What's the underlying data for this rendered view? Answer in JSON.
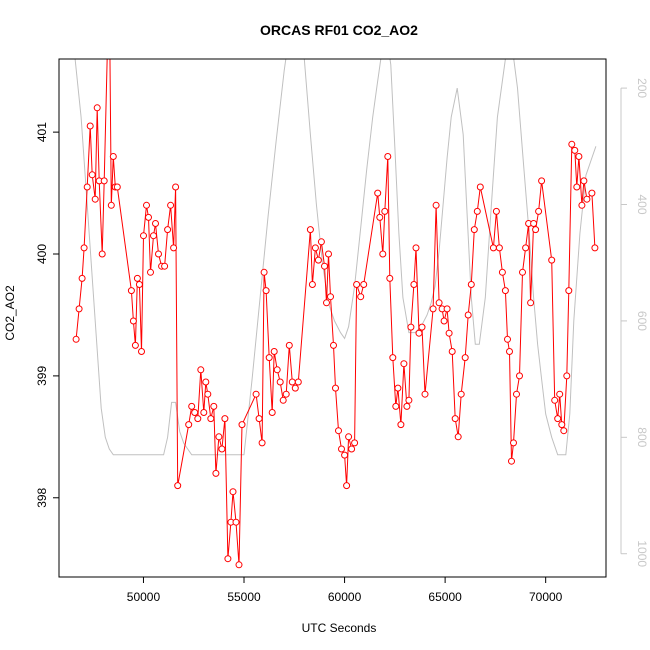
{
  "chart_data": {
    "type": "line",
    "title": "ORCAS RF01 CO2_AO2",
    "xlabel": "UTC Seconds",
    "ylabel": "CO2_AO2",
    "xlim": [
      45800,
      73000
    ],
    "ylim": [
      397.35,
      401.6
    ],
    "x_ticks": [
      50000,
      55000,
      60000,
      65000,
      70000
    ],
    "x_tick_labels": [
      "50000",
      "55000",
      "60000",
      "65000",
      "70000"
    ],
    "y_ticks": [
      398,
      399,
      400,
      401
    ],
    "y_tick_labels": [
      "398",
      "399",
      "400",
      "401"
    ],
    "right_axis": {
      "reversed": true,
      "lim": [
        150,
        1040
      ],
      "ticks": [
        200,
        400,
        600,
        800,
        1000
      ],
      "tick_labels": [
        "200",
        "400",
        "600",
        "800",
        "1000"
      ],
      "color": "#c8c8c8"
    },
    "series": [
      {
        "color": "#ff0000",
        "style": "line+open-circle",
        "x": [
          46650,
          46800,
          46950,
          47050,
          47200,
          47350,
          47450,
          47600,
          47700,
          47800,
          47950,
          48050,
          48200,
          48300,
          48400,
          48500,
          48600,
          48700,
          49400,
          49500,
          49600,
          49700,
          49800,
          49900,
          50000,
          50150,
          50250,
          50350,
          50500,
          50600,
          50750,
          50900,
          51050,
          51200,
          51350,
          51500,
          51600,
          51700,
          52250,
          52400,
          52550,
          52700,
          52850,
          53000,
          53100,
          53200,
          53350,
          53500,
          53600,
          53750,
          53900,
          54050,
          54200,
          54350,
          54450,
          54600,
          54750,
          54900,
          55600,
          55750,
          55900,
          56000,
          56100,
          56250,
          56400,
          56500,
          56650,
          56800,
          56950,
          57100,
          57250,
          57400,
          57550,
          57700,
          58300,
          58400,
          58550,
          58700,
          58850,
          59000,
          59100,
          59200,
          59300,
          59450,
          59550,
          59700,
          59850,
          60000,
          60100,
          60200,
          60350,
          60500,
          60600,
          60800,
          60950,
          61650,
          61750,
          61900,
          62000,
          62150,
          62250,
          62400,
          62550,
          62650,
          62800,
          62950,
          63100,
          63200,
          63300,
          63450,
          63550,
          63700,
          63850,
          64000,
          64400,
          64550,
          64700,
          64850,
          64950,
          65100,
          65200,
          65350,
          65500,
          65650,
          65800,
          66000,
          66150,
          66300,
          66450,
          66600,
          66750,
          67400,
          67550,
          67700,
          67850,
          68000,
          68100,
          68200,
          68300,
          68400,
          68550,
          68700,
          68850,
          69000,
          69150,
          69250,
          69400,
          69500,
          69650,
          69800,
          70300,
          70450,
          70600,
          70700,
          70800,
          70900,
          71050,
          71150,
          71300,
          71450,
          71550,
          71650,
          71800,
          71900,
          72050,
          72300,
          72450
        ],
        "y": [
          399.3,
          399.55,
          399.8,
          400.05,
          400.55,
          401.05,
          400.65,
          400.45,
          401.2,
          400.6,
          400.0,
          400.6,
          401.65,
          402.2,
          400.4,
          400.8,
          400.55,
          400.55,
          399.7,
          399.45,
          399.25,
          399.8,
          399.75,
          399.2,
          400.15,
          400.4,
          400.3,
          399.85,
          400.15,
          400.25,
          400.0,
          399.9,
          399.9,
          400.2,
          400.4,
          400.05,
          400.55,
          398.1,
          398.6,
          398.75,
          398.7,
          398.65,
          399.05,
          398.7,
          398.95,
          398.85,
          398.65,
          398.75,
          398.2,
          398.5,
          398.4,
          398.65,
          397.5,
          397.8,
          398.05,
          397.8,
          397.45,
          398.6,
          398.85,
          398.65,
          398.45,
          399.85,
          399.7,
          399.15,
          398.7,
          399.2,
          399.05,
          398.95,
          398.8,
          398.85,
          399.25,
          398.95,
          398.9,
          398.95,
          400.2,
          399.75,
          400.05,
          399.95,
          400.1,
          399.9,
          399.6,
          400.0,
          399.65,
          399.25,
          398.9,
          398.55,
          398.4,
          398.35,
          398.1,
          398.5,
          398.4,
          398.45,
          399.75,
          399.65,
          399.75,
          400.5,
          400.3,
          400.0,
          400.35,
          400.8,
          399.8,
          399.15,
          398.75,
          398.9,
          398.6,
          399.1,
          398.75,
          398.8,
          399.4,
          399.75,
          400.05,
          399.35,
          399.4,
          398.85,
          399.55,
          400.4,
          399.6,
          399.55,
          399.45,
          399.55,
          399.35,
          399.2,
          398.65,
          398.5,
          398.85,
          399.15,
          399.5,
          399.75,
          400.2,
          400.35,
          400.55,
          400.05,
          400.35,
          400.05,
          399.85,
          399.7,
          399.3,
          399.2,
          398.3,
          398.45,
          398.85,
          399.0,
          399.85,
          400.05,
          400.25,
          399.6,
          400.25,
          400.2,
          400.35,
          400.6,
          399.95,
          398.8,
          398.65,
          398.85,
          398.6,
          398.55,
          399.0,
          399.7,
          400.9,
          400.85,
          400.55,
          400.8,
          400.4,
          400.6,
          400.45,
          400.5,
          400.05
        ]
      },
      {
        "color": "#c0c0c0",
        "style": "line",
        "axis": "right",
        "x": [
          46600,
          46900,
          47200,
          47500,
          47700,
          47900,
          48100,
          48300,
          48500,
          48700,
          49000,
          49500,
          50000,
          50500,
          51000,
          51200,
          51400,
          51600,
          51800,
          52000,
          52200,
          52400,
          53000,
          53500,
          54000,
          54500,
          55000,
          55400,
          55800,
          56200,
          56600,
          57000,
          57200,
          57400,
          57600,
          57800,
          58000,
          58300,
          58600,
          58900,
          59200,
          59500,
          59800,
          60000,
          60200,
          60500,
          60800,
          61100,
          61400,
          61600,
          61800,
          62000,
          62100,
          62300,
          62500,
          62700,
          62900,
          63200,
          63500,
          63800,
          64100,
          64300,
          64500,
          64700,
          64900,
          65100,
          65300,
          65600,
          65900,
          66100,
          66300,
          66500,
          66700,
          67000,
          67300,
          67600,
          68000,
          68300,
          68600,
          68900,
          69200,
          69400,
          69600,
          69800,
          70000,
          70300,
          70600,
          70800,
          71000,
          71200,
          71400,
          71700,
          72000,
          72300,
          72500
        ],
        "y": [
          150,
          250,
          400,
          550,
          650,
          750,
          800,
          820,
          830,
          830,
          830,
          830,
          830,
          830,
          830,
          800,
          740,
          740,
          790,
          810,
          820,
          830,
          830,
          830,
          830,
          830,
          830,
          700,
          560,
          420,
          290,
          170,
          120,
          80,
          60,
          80,
          150,
          280,
          400,
          500,
          570,
          600,
          620,
          630,
          610,
          540,
          440,
          340,
          250,
          200,
          150,
          120,
          110,
          160,
          300,
          450,
          560,
          620,
          620,
          610,
          590,
          570,
          540,
          480,
          400,
          320,
          250,
          200,
          280,
          420,
          560,
          640,
          640,
          560,
          400,
          250,
          150,
          120,
          200,
          330,
          460,
          560,
          640,
          700,
          760,
          800,
          830,
          830,
          830,
          760,
          600,
          450,
          350,
          320,
          300
        ]
      }
    ]
  }
}
